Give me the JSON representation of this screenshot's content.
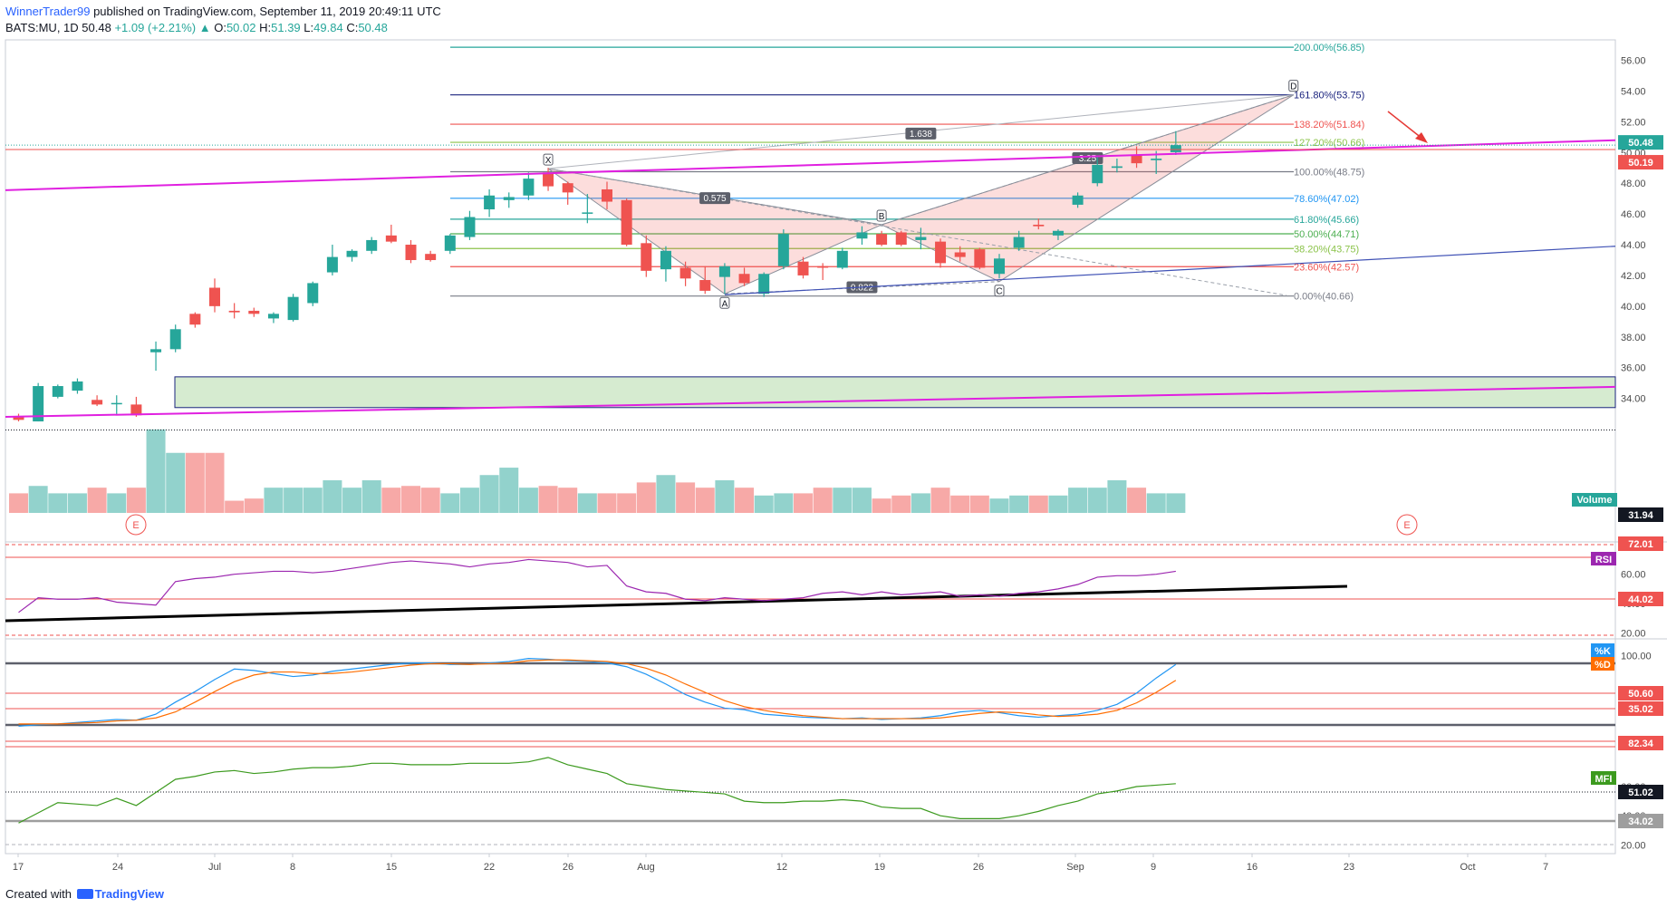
{
  "header": {
    "author": "WinnerTrader99",
    "published": "published on TradingView.com, September 11, 2019 20:49:11 UTC",
    "symbol": "BATS:MU, 1D",
    "last": "50.48",
    "change": "+1.09 (+2.21%)",
    "o_label": "O:",
    "o": "50.02",
    "h_label": "H:",
    "h": "51.39",
    "l_label": "L:",
    "l": "49.84",
    "c_label": "C:",
    "c": "50.48"
  },
  "footer": {
    "created": "Created with",
    "brand": "TradingView"
  },
  "colors": {
    "up": "#26a69a",
    "down": "#ef5350",
    "magenta": "#e020e0",
    "rsi": "#9c27b0",
    "k": "#2196f3",
    "d": "#ff6d00",
    "mfi": "#3c9a1e"
  },
  "chart_data": {
    "type": "candlestick",
    "symbol": "BATS:MU",
    "interval": "1D",
    "x_ticks": [
      "17",
      "24",
      "Jul",
      "8",
      "15",
      "22",
      "26",
      "Aug",
      "12",
      "19",
      "26",
      "Sep",
      "9",
      "16",
      "23",
      "Oct",
      "7"
    ],
    "y_ticks": [
      "56.00",
      "54.00",
      "52.00",
      "50.00",
      "48.00",
      "46.00",
      "44.00",
      "42.00",
      "40.00",
      "38.00",
      "36.00",
      "34.00"
    ],
    "ylim": [
      31.5,
      57.8
    ],
    "price_tags": [
      {
        "value": "50.48",
        "color": "#26a69a"
      },
      {
        "value": "50.19",
        "color": "#ef5350"
      },
      {
        "value": "31.94",
        "color": "#131722"
      }
    ],
    "candles": [
      {
        "x": 0,
        "o": 32.8,
        "h": 33.0,
        "l": 32.5,
        "c": 32.6
      },
      {
        "x": 1,
        "o": 32.5,
        "h": 35.0,
        "l": 32.5,
        "c": 34.8
      },
      {
        "x": 2,
        "o": 34.1,
        "h": 34.9,
        "l": 34.0,
        "c": 34.8
      },
      {
        "x": 3,
        "o": 34.5,
        "h": 35.3,
        "l": 34.3,
        "c": 35.1
      },
      {
        "x": 4,
        "o": 33.9,
        "h": 34.2,
        "l": 33.5,
        "c": 33.6
      },
      {
        "x": 5,
        "o": 33.7,
        "h": 34.2,
        "l": 32.9,
        "c": 33.7
      },
      {
        "x": 6,
        "o": 33.6,
        "h": 34.1,
        "l": 32.8,
        "c": 32.9
      },
      {
        "x": 7,
        "o": 37.0,
        "h": 37.7,
        "l": 35.8,
        "c": 37.2
      },
      {
        "x": 8,
        "o": 37.2,
        "h": 38.8,
        "l": 37.0,
        "c": 38.5
      },
      {
        "x": 9,
        "o": 39.5,
        "h": 39.6,
        "l": 38.6,
        "c": 38.8
      },
      {
        "x": 10,
        "o": 41.2,
        "h": 41.8,
        "l": 39.6,
        "c": 40.0
      },
      {
        "x": 11,
        "o": 39.7,
        "h": 40.2,
        "l": 39.2,
        "c": 39.6
      },
      {
        "x": 12,
        "o": 39.7,
        "h": 39.9,
        "l": 39.3,
        "c": 39.5
      },
      {
        "x": 13,
        "o": 39.2,
        "h": 39.6,
        "l": 38.9,
        "c": 39.5
      },
      {
        "x": 14,
        "o": 39.1,
        "h": 40.8,
        "l": 39.0,
        "c": 40.6
      },
      {
        "x": 15,
        "o": 40.2,
        "h": 41.6,
        "l": 40.0,
        "c": 41.5
      },
      {
        "x": 16,
        "o": 42.2,
        "h": 44.0,
        "l": 42.0,
        "c": 43.2
      },
      {
        "x": 17,
        "o": 43.2,
        "h": 43.7,
        "l": 42.9,
        "c": 43.6
      },
      {
        "x": 18,
        "o": 43.6,
        "h": 44.5,
        "l": 43.4,
        "c": 44.3
      },
      {
        "x": 19,
        "o": 44.6,
        "h": 45.3,
        "l": 44.1,
        "c": 44.2
      },
      {
        "x": 20,
        "o": 44.0,
        "h": 44.3,
        "l": 42.8,
        "c": 43.0
      },
      {
        "x": 21,
        "o": 43.4,
        "h": 43.6,
        "l": 42.9,
        "c": 43.0
      },
      {
        "x": 22,
        "o": 43.6,
        "h": 44.7,
        "l": 43.4,
        "c": 44.6
      },
      {
        "x": 23,
        "o": 44.5,
        "h": 46.2,
        "l": 44.3,
        "c": 45.8
      },
      {
        "x": 24,
        "o": 46.3,
        "h": 47.6,
        "l": 45.8,
        "c": 47.2
      },
      {
        "x": 25,
        "o": 46.9,
        "h": 47.4,
        "l": 46.4,
        "c": 47.1
      },
      {
        "x": 26,
        "o": 47.2,
        "h": 48.7,
        "l": 46.9,
        "c": 48.3
      },
      {
        "x": 27,
        "o": 48.7,
        "h": 49.0,
        "l": 47.5,
        "c": 47.8
      },
      {
        "x": 28,
        "o": 48.0,
        "h": 48.1,
        "l": 46.6,
        "c": 47.4
      },
      {
        "x": 29,
        "o": 46.1,
        "h": 47.3,
        "l": 45.4,
        "c": 46.1
      },
      {
        "x": 30,
        "o": 47.6,
        "h": 48.1,
        "l": 46.3,
        "c": 46.8
      },
      {
        "x": 31,
        "o": 46.9,
        "h": 47.0,
        "l": 43.9,
        "c": 44.0
      },
      {
        "x": 32,
        "o": 44.1,
        "h": 44.6,
        "l": 41.9,
        "c": 42.3
      },
      {
        "x": 33,
        "o": 42.4,
        "h": 43.9,
        "l": 41.6,
        "c": 43.6
      },
      {
        "x": 34,
        "o": 42.5,
        "h": 42.9,
        "l": 41.3,
        "c": 41.8
      },
      {
        "x": 35,
        "o": 41.7,
        "h": 42.6,
        "l": 40.8,
        "c": 41.0
      },
      {
        "x": 36,
        "o": 41.9,
        "h": 42.8,
        "l": 40.8,
        "c": 42.6
      },
      {
        "x": 37,
        "o": 42.1,
        "h": 42.5,
        "l": 41.3,
        "c": 41.5
      },
      {
        "x": 38,
        "o": 40.8,
        "h": 42.2,
        "l": 40.6,
        "c": 42.1
      },
      {
        "x": 39,
        "o": 42.6,
        "h": 45.0,
        "l": 42.4,
        "c": 44.7
      },
      {
        "x": 40,
        "o": 42.9,
        "h": 43.2,
        "l": 41.8,
        "c": 42.0
      },
      {
        "x": 41,
        "o": 42.6,
        "h": 42.8,
        "l": 41.7,
        "c": 42.5
      },
      {
        "x": 42,
        "o": 42.5,
        "h": 43.8,
        "l": 42.4,
        "c": 43.6
      },
      {
        "x": 43,
        "o": 44.4,
        "h": 45.2,
        "l": 44.0,
        "c": 44.8
      },
      {
        "x": 44,
        "o": 44.7,
        "h": 44.9,
        "l": 43.9,
        "c": 44.0
      },
      {
        "x": 45,
        "o": 44.8,
        "h": 44.9,
        "l": 43.9,
        "c": 44.0
      },
      {
        "x": 46,
        "o": 44.3,
        "h": 45.1,
        "l": 43.7,
        "c": 44.5
      },
      {
        "x": 47,
        "o": 44.2,
        "h": 44.4,
        "l": 42.5,
        "c": 42.8
      },
      {
        "x": 48,
        "o": 43.5,
        "h": 43.9,
        "l": 42.9,
        "c": 43.2
      },
      {
        "x": 49,
        "o": 43.7,
        "h": 43.8,
        "l": 42.4,
        "c": 42.5
      },
      {
        "x": 50,
        "o": 42.1,
        "h": 43.4,
        "l": 41.8,
        "c": 43.1
      },
      {
        "x": 51,
        "o": 43.8,
        "h": 44.9,
        "l": 43.6,
        "c": 44.5
      },
      {
        "x": 52,
        "o": 45.3,
        "h": 45.7,
        "l": 45.0,
        "c": 45.2
      },
      {
        "x": 53,
        "o": 44.6,
        "h": 45.0,
        "l": 44.3,
        "c": 44.9
      },
      {
        "x": 54,
        "o": 46.6,
        "h": 47.4,
        "l": 46.4,
        "c": 47.2
      },
      {
        "x": 55,
        "o": 48.0,
        "h": 49.7,
        "l": 47.8,
        "c": 49.2
      },
      {
        "x": 56,
        "o": 49.0,
        "h": 49.6,
        "l": 48.7,
        "c": 49.1
      },
      {
        "x": 57,
        "o": 49.8,
        "h": 50.4,
        "l": 49.0,
        "c": 49.3
      },
      {
        "x": 58,
        "o": 49.5,
        "h": 50.1,
        "l": 48.6,
        "c": 49.6
      },
      {
        "x": 59,
        "o": 50.02,
        "h": 51.39,
        "l": 49.84,
        "c": 50.48
      }
    ],
    "volume_label": "Volume",
    "volume": [
      0.45,
      0.62,
      0.45,
      0.45,
      0.58,
      0.45,
      0.58,
      1.92,
      1.38,
      1.38,
      1.38,
      0.28,
      0.33,
      0.58,
      0.58,
      0.58,
      0.75,
      0.58,
      0.75,
      0.58,
      0.62,
      0.58,
      0.45,
      0.58,
      0.87,
      1.04,
      0.58,
      0.62,
      0.58,
      0.45,
      0.45,
      0.45,
      0.7,
      0.87,
      0.7,
      0.58,
      0.75,
      0.58,
      0.4,
      0.45,
      0.45,
      0.58,
      0.58,
      0.58,
      0.33,
      0.4,
      0.45,
      0.58,
      0.4,
      0.4,
      0.33,
      0.4,
      0.4,
      0.4,
      0.58,
      0.58,
      0.75,
      0.58,
      0.45,
      0.45
    ],
    "earnings_marker": "E",
    "fib_levels": [
      {
        "label": "200.00%(56.85)",
        "value": 56.85,
        "color": "#26a69a"
      },
      {
        "label": "161.80%(53.75)",
        "value": 53.75,
        "color": "#1a237e"
      },
      {
        "label": "138.20%(51.84)",
        "value": 51.84,
        "color": "#ef5350"
      },
      {
        "label": "127.20%(50.66)",
        "value": 50.66,
        "color": "#8bc34a"
      },
      {
        "label": "100.00%(48.75)",
        "value": 48.75,
        "color": "#787b86"
      },
      {
        "label": "78.60%(47.02)",
        "value": 47.02,
        "color": "#2196f3"
      },
      {
        "label": "61.80%(45.66)",
        "value": 45.66,
        "color": "#26a69a"
      },
      {
        "label": "50.00%(44.71)",
        "value": 44.71,
        "color": "#4caf50"
      },
      {
        "label": "38.20%(43.75)",
        "value": 43.75,
        "color": "#8bc34a"
      },
      {
        "label": "23.60%(42.57)",
        "value": 42.57,
        "color": "#ef5350"
      },
      {
        "label": "0.00%(40.66)",
        "value": 40.66,
        "color": "#787b86"
      }
    ],
    "pattern_points": [
      {
        "label": "X",
        "x": 27,
        "y": 48.95
      },
      {
        "label": "A",
        "x": 36,
        "y": 40.8
      },
      {
        "label": "B",
        "x": 44,
        "y": 45.3
      },
      {
        "label": "C",
        "x": 50,
        "y": 41.6
      },
      {
        "label": "D",
        "x": 65,
        "y": 53.75
      }
    ],
    "ratios": [
      {
        "label": "0.575",
        "x": 35.5,
        "y": 47.0
      },
      {
        "label": "0.822",
        "x": 43.0,
        "y": 41.2
      },
      {
        "label": "1.638",
        "x": 46.0,
        "y": 51.2
      },
      {
        "label": "3.25",
        "x": 54.5,
        "y": 49.6
      }
    ],
    "rsi": {
      "label": "RSI",
      "levels": [
        "72.01",
        "44.02"
      ],
      "values": [
        34,
        44,
        43,
        43,
        44,
        41,
        40,
        39,
        55,
        57,
        58,
        60,
        61,
        62,
        62,
        61,
        62,
        64,
        66,
        68,
        69,
        68,
        67,
        65,
        67,
        68,
        70,
        69,
        68,
        65,
        66,
        52,
        48,
        47,
        43,
        42,
        44,
        43,
        42,
        43,
        44,
        47,
        48,
        46,
        48,
        46,
        47,
        48,
        45,
        46,
        45,
        47,
        48,
        50,
        53,
        58,
        59,
        59,
        60,
        62
      ],
      "ylim": [
        16,
        82
      ],
      "y_ticks": [
        "60.00",
        "40.00",
        "20.00"
      ],
      "trend_start": 29.5,
      "trend_end": 49.5
    },
    "stoch": {
      "label_k": "%K",
      "label_d": "%D",
      "levels": [
        "50.60",
        "35.02"
      ],
      "k": [
        6,
        8,
        9,
        11,
        13,
        15,
        14,
        22,
        38,
        52,
        68,
        82,
        80,
        76,
        72,
        74,
        79,
        82,
        85,
        88,
        90,
        90,
        88,
        88,
        90,
        92,
        96,
        95,
        93,
        92,
        90,
        85,
        75,
        62,
        48,
        38,
        30,
        28,
        22,
        20,
        18,
        17,
        16,
        17,
        15,
        16,
        17,
        20,
        25,
        27,
        24,
        20,
        18,
        20,
        22,
        27,
        35,
        50,
        70,
        88
      ],
      "d": [
        9,
        9,
        9,
        10,
        11,
        13,
        14,
        17,
        25,
        38,
        52,
        65,
        74,
        78,
        78,
        76,
        76,
        78,
        81,
        84,
        87,
        89,
        89,
        88,
        89,
        90,
        93,
        94,
        94,
        93,
        92,
        89,
        83,
        74,
        62,
        51,
        40,
        32,
        27,
        23,
        20,
        18,
        16,
        16,
        16,
        16,
        16,
        17,
        20,
        23,
        25,
        24,
        21,
        19,
        20,
        22,
        27,
        37,
        51,
        67
      ],
      "ylim": [
        -20,
        122
      ],
      "y_ticks": [
        "100.00"
      ]
    },
    "mfi": {
      "label": "MFI",
      "levels": [
        "82.34",
        "51.02",
        "34.02"
      ],
      "values": [
        35,
        42,
        49,
        48,
        47,
        52,
        47,
        56,
        65,
        67,
        70,
        71,
        69,
        70,
        72,
        73,
        73,
        74,
        76,
        76,
        75,
        75,
        75,
        76,
        76,
        76,
        77,
        80,
        75,
        72,
        69,
        62,
        60,
        58,
        57,
        56,
        55,
        50,
        49,
        49,
        50,
        50,
        51,
        50,
        46,
        45,
        45,
        40,
        38,
        38,
        38,
        40,
        43,
        47,
        50,
        55,
        57,
        60,
        61,
        62
      ],
      "ylim": [
        14,
        88
      ],
      "y_ticks": [
        "60.00",
        "40.00",
        "20.00"
      ]
    }
  }
}
